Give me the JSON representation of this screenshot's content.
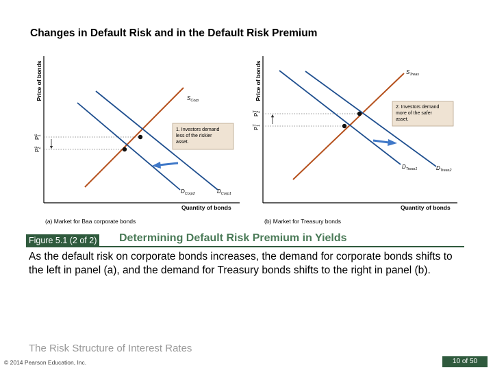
{
  "slide": {
    "title": "Changes in Default Risk and in the Default Risk Premium",
    "figure_tag": "Figure 5.1 (2 of 2)",
    "figure_heading": "Determining Default Risk Premium in Yields",
    "caption": "As the default risk on corporate bonds increases, the demand for corporate bonds shifts to the left in panel (a), and the demand for Treasury bonds shifts to the right in panel (b).",
    "footer_title": "The Risk Structure of Interest Rates",
    "copyright": "© 2014 Pearson Education, Inc.",
    "page_number": "10 of 50"
  },
  "panel_a": {
    "y_axis": "Price of bonds",
    "x_axis": "Quantity of bonds",
    "caption": "(a) Market for Baa corporate bonds",
    "p1_label": "P",
    "p1_sup": "c",
    "p1_sub": "1",
    "p2_label": "P",
    "p2_sup": "c",
    "p2_sub": "2",
    "supply_label": "S",
    "supply_sub": "Corp",
    "d1_label": "D",
    "d1_sub": "Corp1",
    "d2_label": "D",
    "d2_sub": "Corp2",
    "note_lines": [
      "1. Investors demand",
      "less of the riskier",
      "asset."
    ]
  },
  "panel_b": {
    "y_axis": "Price of bonds",
    "x_axis": "Quantity of bonds",
    "caption": "(b) Market for Treasury bonds",
    "p2_label": "P",
    "p2_sup": "T",
    "p2_sub": "2",
    "p1_label": "P",
    "p1_sup": "T",
    "p1_sub": "1",
    "supply_label": "S",
    "supply_sub": "Treas",
    "d1_label": "D",
    "d1_sub": "Treas1",
    "d2_label": "D",
    "d2_sub": "Treas2",
    "note_lines": [
      "2. Investors demand",
      "more of the safer",
      "asset."
    ]
  },
  "colors": {
    "supply_line": "#b5501c",
    "demand_line": "#1f4f8f",
    "shift_arrow": "#3f78c8",
    "note_box": "#efe3d3",
    "accent_green": "#2f5a3d"
  }
}
